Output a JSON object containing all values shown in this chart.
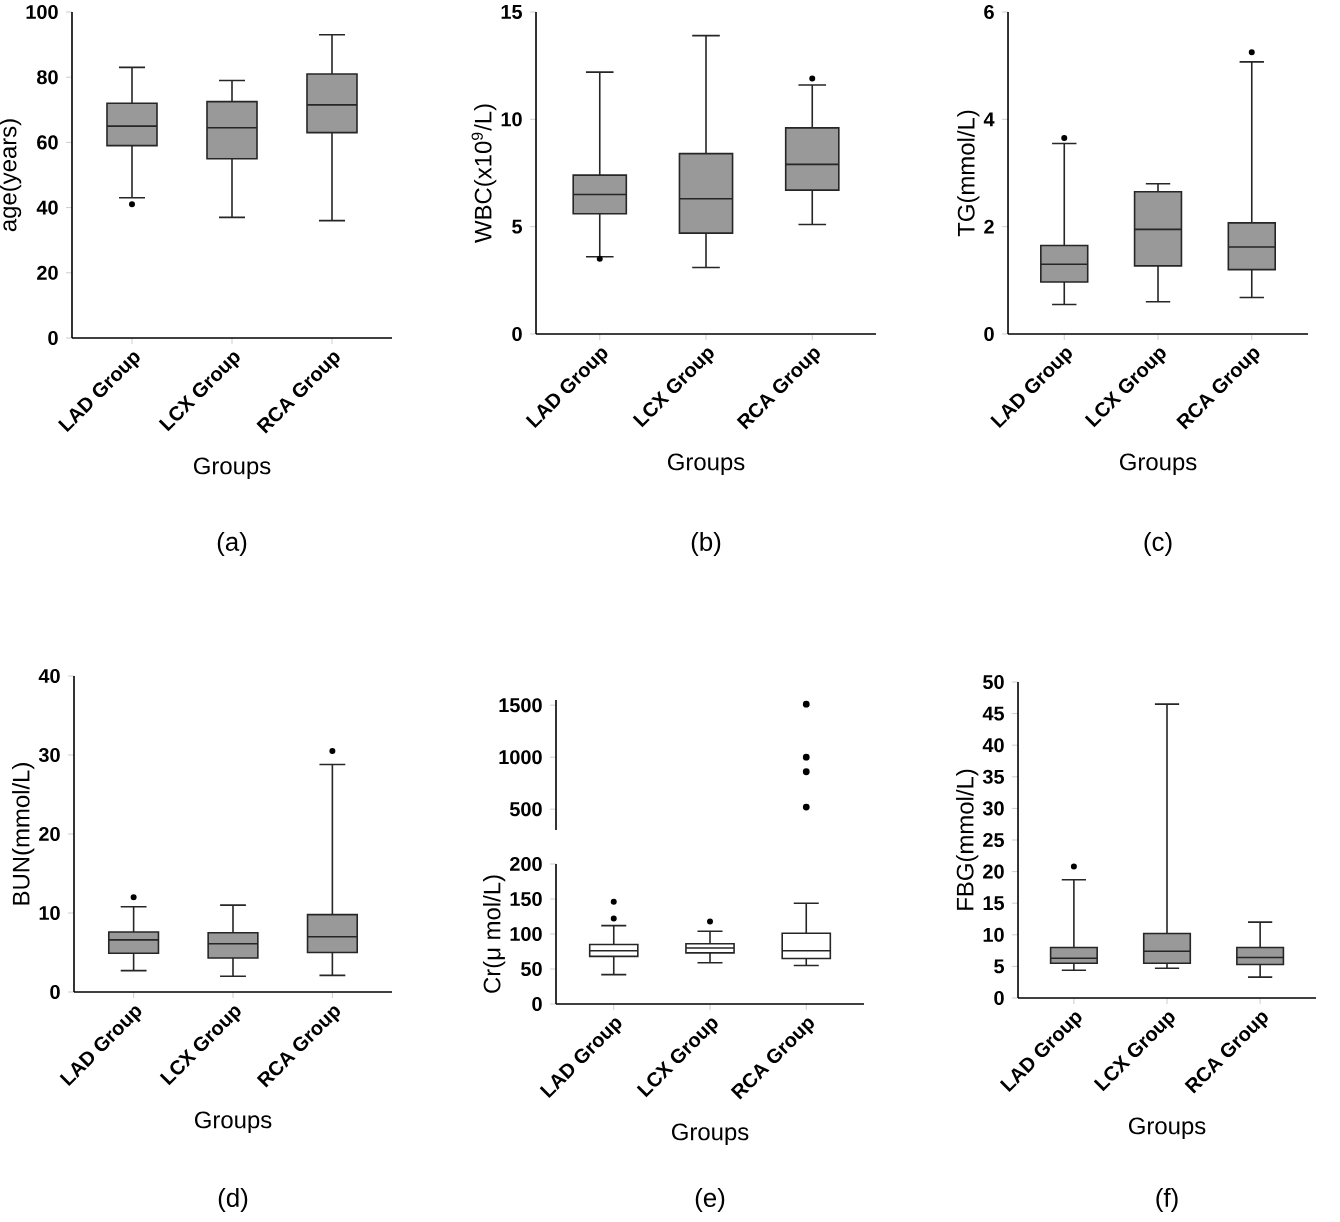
{
  "chart_data": [
    {
      "type": "box",
      "categories": [
        "LAD Group",
        "LCX Group",
        "RCA Group"
      ],
      "xlabel": "Groups",
      "ylabel": "age(years)",
      "color": "#999999",
      "ylim": [
        0,
        100
      ],
      "yticks": [
        0,
        20,
        40,
        60,
        80,
        100
      ],
      "annotations": [
        "(a)"
      ],
      "boxes": [
        {
          "low": 43,
          "q1": 59,
          "median": 65,
          "q3": 72,
          "high": 83,
          "outliers": [
            41
          ]
        },
        {
          "low": 37,
          "q1": 55,
          "median": 64.5,
          "q3": 72.5,
          "high": 79
        },
        {
          "low": 36,
          "q1": 63,
          "median": 71.5,
          "q3": 81,
          "high": 93
        }
      ]
    },
    {
      "type": "box",
      "categories": [
        "LAD Group",
        "LCX Group",
        "RCA Group"
      ],
      "xlabel": "Groups",
      "ylabel": "WBC(x10$^{9}$/L)",
      "color": "#999999",
      "ylim": [
        0,
        15
      ],
      "yticks": [
        0,
        5,
        10,
        15
      ],
      "annotations": [
        "(b)"
      ],
      "boxes": [
        {
          "low": 3.6,
          "q1": 5.6,
          "median": 6.5,
          "q3": 7.4,
          "high": 12.2,
          "outliers": [
            3.5
          ]
        },
        {
          "low": 3.1,
          "q1": 4.7,
          "median": 6.3,
          "q3": 8.4,
          "high": 13.9
        },
        {
          "low": 5.1,
          "q1": 6.7,
          "median": 7.9,
          "q3": 9.6,
          "high": 11.6,
          "outliers": [
            11.9
          ]
        }
      ]
    },
    {
      "type": "box",
      "categories": [
        "LAD Group",
        "LCX Group",
        "RCA Group"
      ],
      "xlabel": "Groups",
      "ylabel": "TG(mmol/L)",
      "color": "#999999",
      "ylim": [
        0,
        6
      ],
      "yticks": [
        0,
        2,
        4,
        6
      ],
      "annotations": [
        "(c)"
      ],
      "boxes": [
        {
          "low": 0.55,
          "q1": 0.97,
          "median": 1.3,
          "q3": 1.65,
          "high": 3.55,
          "outliers": [
            3.65
          ]
        },
        {
          "low": 0.6,
          "q1": 1.27,
          "median": 1.95,
          "q3": 2.65,
          "high": 2.8
        },
        {
          "low": 0.68,
          "q1": 1.2,
          "median": 1.62,
          "q3": 2.07,
          "high": 5.07,
          "outliers": [
            5.25
          ]
        }
      ]
    },
    {
      "type": "box",
      "categories": [
        "LAD Group",
        "LCX Group",
        "RCA Group"
      ],
      "xlabel": "Groups",
      "ylabel": "BUN(mmol/L)",
      "color": "#999999",
      "ylim": [
        0,
        40
      ],
      "yticks": [
        0,
        10,
        20,
        30,
        40
      ],
      "annotations": [
        "(d)"
      ],
      "boxes": [
        {
          "low": 2.7,
          "q1": 4.9,
          "median": 6.6,
          "q3": 7.6,
          "high": 10.8,
          "outliers": [
            12
          ]
        },
        {
          "low": 2,
          "q1": 4.3,
          "median": 6.1,
          "q3": 7.5,
          "high": 11
        },
        {
          "low": 2.1,
          "q1": 5,
          "median": 7,
          "q3": 9.8,
          "high": 28.8,
          "outliers": [
            30.5
          ]
        }
      ]
    },
    {
      "type": "scatter",
      "categories": [
        "LAD Group",
        "LCX Group",
        "RCA Group"
      ],
      "tick_labels": "y",
      "marker": "circle",
      "color": "#000000",
      "ylim": [
        300,
        1550
      ],
      "yticks": [
        500,
        1000,
        1500
      ],
      "series": [
        {
          "x": [
            "RCA Group",
            "RCA Group",
            "RCA Group",
            "RCA Group"
          ],
          "values": [
            1510,
            1000,
            860,
            520
          ]
        }
      ]
    },
    {
      "type": "box",
      "categories": [
        "LAD Group",
        "LCX Group",
        "RCA Group"
      ],
      "xlabel": "Groups",
      "ylabel": "Cr(μ mol/L)",
      "color": "#ffffff",
      "ylim": [
        0,
        200
      ],
      "yticks": [
        0,
        50,
        100,
        150,
        200
      ],
      "annotations": [
        "(e)"
      ],
      "boxes": [
        {
          "low": 42,
          "q1": 68,
          "median": 76,
          "q3": 85,
          "high": 112,
          "outliers": [
            122,
            146
          ]
        },
        {
          "low": 59,
          "q1": 73,
          "median": 80,
          "q3": 86,
          "high": 104,
          "outliers": [
            118
          ]
        },
        {
          "low": 55,
          "q1": 65,
          "median": 76,
          "q3": 101,
          "high": 144
        }
      ]
    },
    {
      "type": "box",
      "categories": [
        "LAD Group",
        "LCX Group",
        "RCA Group"
      ],
      "xlabel": "Groups",
      "ylabel": "FBG(mmol/L)",
      "color": "#999999",
      "ylim": [
        0,
        50
      ],
      "yticks": [
        0,
        5,
        10,
        15,
        20,
        25,
        30,
        35,
        40,
        45,
        50
      ],
      "annotations": [
        "(f)"
      ],
      "boxes": [
        {
          "low": 4.4,
          "q1": 5.5,
          "median": 6.3,
          "q3": 8,
          "high": 18.7,
          "outliers": [
            20.8
          ]
        },
        {
          "low": 4.7,
          "q1": 5.5,
          "median": 7.4,
          "q3": 10.2,
          "high": 46.5
        },
        {
          "low": 3.3,
          "q1": 5.3,
          "median": 6.4,
          "q3": 8,
          "high": 12
        }
      ]
    }
  ]
}
